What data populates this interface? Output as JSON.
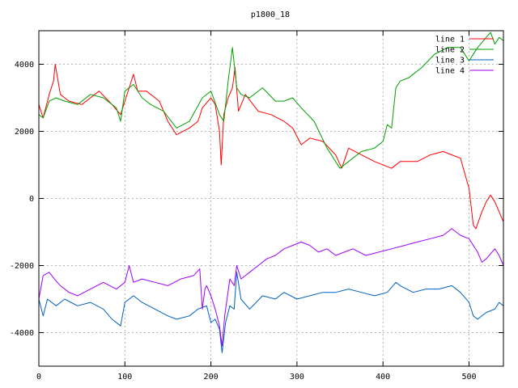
{
  "chart_data": {
    "type": "line",
    "title": "p1800_18",
    "xlabel": "",
    "ylabel": "",
    "xlim": [
      0,
      540
    ],
    "ylim": [
      -5000,
      5000
    ],
    "xticks": [
      0,
      100,
      200,
      300,
      400,
      500
    ],
    "yticks": [
      -4000,
      -2000,
      0,
      2000,
      4000
    ],
    "grid": true,
    "legend_position": "top-right",
    "series": [
      {
        "name": "line 1",
        "color": "#ff0000",
        "x": [
          0,
          5,
          12,
          17,
          19,
          25,
          35,
          50,
          70,
          85,
          95,
          105,
          110,
          115,
          125,
          140,
          150,
          160,
          175,
          185,
          190,
          200,
          205,
          210,
          212,
          215,
          220,
          225,
          228,
          232,
          240,
          255,
          270,
          285,
          295,
          305,
          315,
          330,
          345,
          352,
          360,
          375,
          390,
          410,
          420,
          440,
          455,
          470,
          480,
          490,
          500,
          505,
          508,
          515,
          520,
          525,
          530,
          535,
          540
        ],
        "y": [
          2800,
          2400,
          3100,
          3500,
          4000,
          3100,
          2900,
          2800,
          3200,
          2800,
          2500,
          3300,
          3700,
          3200,
          3200,
          2900,
          2300,
          1900,
          2100,
          2300,
          2700,
          3000,
          2800,
          2000,
          1000,
          2500,
          3000,
          3300,
          3900,
          2600,
          3100,
          2600,
          2500,
          2300,
          2100,
          1600,
          1800,
          1700,
          1300,
          900,
          1500,
          1300,
          1100,
          900,
          1100,
          1100,
          1300,
          1400,
          1300,
          1200,
          300,
          -800,
          -900,
          -400,
          -100,
          100,
          -100,
          -400,
          -700
        ]
      },
      {
        "name": "line 2",
        "color": "#00a000",
        "x": [
          0,
          5,
          12,
          20,
          30,
          45,
          60,
          75,
          90,
          95,
          100,
          110,
          120,
          130,
          145,
          160,
          175,
          190,
          200,
          210,
          215,
          220,
          225,
          230,
          235,
          245,
          260,
          275,
          285,
          295,
          305,
          320,
          335,
          350,
          360,
          375,
          390,
          400,
          405,
          410,
          415,
          420,
          430,
          445,
          460,
          475,
          490,
          500,
          510,
          520,
          525,
          530,
          535,
          540
        ],
        "y": [
          2500,
          2400,
          2900,
          3000,
          2900,
          2800,
          3100,
          3000,
          2700,
          2300,
          3200,
          3400,
          3000,
          2800,
          2600,
          2100,
          2300,
          3000,
          3200,
          2500,
          2300,
          3500,
          4500,
          3300,
          3100,
          3000,
          3300,
          2900,
          2900,
          3000,
          2700,
          2300,
          1500,
          900,
          1100,
          1400,
          1500,
          1700,
          2200,
          2100,
          3300,
          3500,
          3600,
          3900,
          4300,
          4500,
          4500,
          4100,
          4500,
          4800,
          4950,
          4600,
          4800,
          4700
        ]
      },
      {
        "name": "line 3",
        "color": "#0060c0",
        "x": [
          0,
          5,
          10,
          20,
          30,
          45,
          60,
          75,
          85,
          95,
          100,
          110,
          120,
          135,
          150,
          160,
          175,
          185,
          195,
          200,
          205,
          210,
          213,
          217,
          222,
          227,
          230,
          235,
          245,
          260,
          275,
          285,
          300,
          315,
          330,
          345,
          360,
          375,
          390,
          405,
          415,
          420,
          435,
          450,
          465,
          480,
          490,
          500,
          505,
          510,
          520,
          530,
          535,
          540
        ],
        "y": [
          -3000,
          -3500,
          -3000,
          -3200,
          -3000,
          -3200,
          -3100,
          -3300,
          -3600,
          -3800,
          -3100,
          -2900,
          -3100,
          -3300,
          -3500,
          -3600,
          -3500,
          -3300,
          -3200,
          -3700,
          -3600,
          -3900,
          -4600,
          -3700,
          -3200,
          -3300,
          -2200,
          -3000,
          -3300,
          -2900,
          -3000,
          -2800,
          -3000,
          -2900,
          -2800,
          -2800,
          -2700,
          -2800,
          -2900,
          -2800,
          -2500,
          -2600,
          -2800,
          -2700,
          -2700,
          -2600,
          -2800,
          -3100,
          -3500,
          -3600,
          -3400,
          -3300,
          -3100,
          -3200
        ]
      },
      {
        "name": "line 4",
        "color": "#a000ff",
        "x": [
          0,
          5,
          12,
          18,
          25,
          35,
          45,
          60,
          75,
          90,
          100,
          105,
          110,
          120,
          135,
          150,
          165,
          180,
          187,
          190,
          193,
          195,
          200,
          205,
          210,
          213,
          216,
          222,
          227,
          230,
          235,
          245,
          255,
          265,
          275,
          285,
          295,
          305,
          315,
          325,
          335,
          345,
          355,
          365,
          380,
          395,
          410,
          425,
          440,
          455,
          470,
          480,
          490,
          500,
          510,
          515,
          520,
          530,
          535,
          540
        ],
        "y": [
          -3000,
          -2300,
          -2200,
          -2400,
          -2600,
          -2800,
          -2900,
          -2700,
          -2500,
          -2700,
          -2500,
          -2000,
          -2500,
          -2400,
          -2500,
          -2600,
          -2400,
          -2300,
          -2100,
          -3300,
          -2700,
          -2600,
          -2900,
          -3300,
          -3800,
          -4400,
          -3500,
          -2400,
          -2600,
          -2000,
          -2400,
          -2200,
          -2000,
          -1800,
          -1700,
          -1500,
          -1400,
          -1300,
          -1400,
          -1600,
          -1500,
          -1700,
          -1600,
          -1500,
          -1700,
          -1600,
          -1500,
          -1400,
          -1300,
          -1200,
          -1100,
          -900,
          -1100,
          -1200,
          -1600,
          -1900,
          -1800,
          -1500,
          -1700,
          -2000
        ]
      }
    ]
  }
}
